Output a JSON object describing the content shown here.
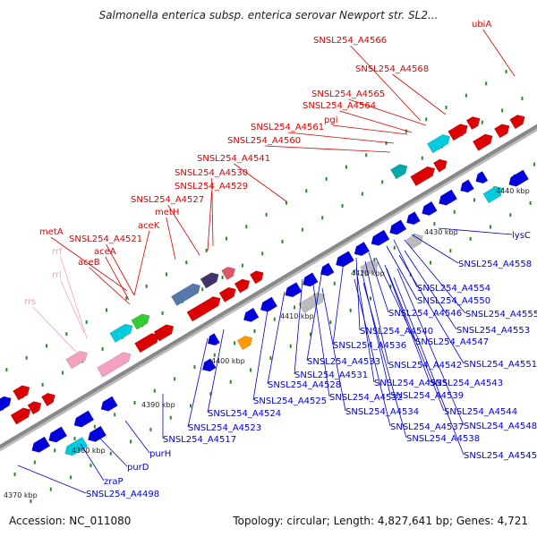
{
  "header": {
    "title": "Salmonella enterica subsp. enterica serovar Newport str. SL2..."
  },
  "footer": {
    "accession": "Accession: NC_011080",
    "summary": "Topology: circular; Length: 4,827,641 bp; Genes: 4,721"
  },
  "colors": {
    "label_top": "#dd0000",
    "label_bottom": "#0000cc",
    "label_rna": "#f4a0c0",
    "backbone": "#888888",
    "tick_dot": "#2a8a2a"
  },
  "ticks": [
    "4370 kbp",
    "4380 kbp",
    "4390 kbp",
    "4400 kbp",
    "4410 kbp",
    "4420 kbp",
    "4430 kbp",
    "4440 kbp"
  ],
  "top_labels": [
    "ubiA",
    "SNSL254_A4566",
    "SNSL254_A4568",
    "SNSL254_A4565",
    "SNSL254_A4564",
    "pgi",
    "SNSL254_A4561",
    "SNSL254_A4560",
    "SNSL254_A4541",
    "SNSL254_A4530",
    "SNSL254_A4529",
    "SNSL254_A4527",
    "metH",
    "aceK",
    "metA",
    "SNSL254_A4521",
    "aceA",
    "aceB",
    "rrf",
    "rrl",
    "rrs"
  ],
  "bottom_labels": [
    "lysC",
    "SNSL254_A4558",
    "SNSL254_A4554",
    "SNSL254_A4550",
    "SNSL254_A4546",
    "SNSL254_A4555",
    "SNSL254_A4540",
    "SNSL254_A4553",
    "SNSL254_A4536",
    "SNSL254_A4547",
    "SNSL254_A4533",
    "SNSL254_A4542",
    "SNSL254_A4551",
    "SNSL254_A4531",
    "SNSL254_A4535",
    "SNSL254_A4543",
    "SNSL254_A4528",
    "SNSL254_A4532",
    "SNSL254_A4539",
    "SNSL254_A4525",
    "SNSL254_A4534",
    "SNSL254_A4544",
    "SNSL254_A4537",
    "SNSL254_A4548",
    "SNSL254_A4524",
    "SNSL254_A4538",
    "SNSL254_A4523",
    "SNSL254_A4545",
    "SNSL254_A4517",
    "purH",
    "purD",
    "zraP",
    "SNSL254_A4498"
  ]
}
